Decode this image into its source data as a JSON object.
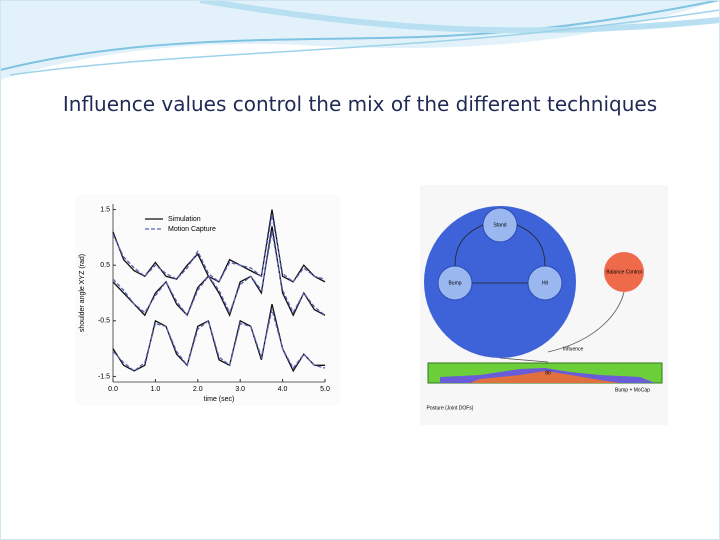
{
  "slide": {
    "title": "Influence values control the mix of the different techniques"
  },
  "chart_data": {
    "type": "line",
    "y_label": "shoulder angle XYZ (rad)",
    "x_label": "time (sec)",
    "x": [
      0,
      0.25,
      0.5,
      0.75,
      1,
      1.25,
      1.5,
      1.75,
      2,
      2.25,
      2.5,
      2.75,
      3,
      3.25,
      3.5,
      3.75,
      4,
      4.25,
      4.5,
      4.75,
      5
    ],
    "series": [
      {
        "name": "Simulation",
        "color": "#111111",
        "dashed": false,
        "curves": [
          [
            1.1,
            0.6,
            0.4,
            0.3,
            0.55,
            0.3,
            0.25,
            0.5,
            0.7,
            0.3,
            0.2,
            0.6,
            0.5,
            0.4,
            0.3,
            1.5,
            0.3,
            0.2,
            0.5,
            0.3,
            0.2
          ],
          [
            0.2,
            0.0,
            -0.2,
            -0.4,
            0.0,
            0.2,
            -0.2,
            -0.4,
            0.1,
            0.3,
            0.0,
            -0.4,
            0.2,
            0.3,
            0.0,
            1.2,
            0.0,
            -0.4,
            0.0,
            -0.3,
            -0.4
          ],
          [
            -1.0,
            -1.3,
            -1.4,
            -1.3,
            -0.5,
            -0.6,
            -1.1,
            -1.3,
            -0.6,
            -0.5,
            -1.2,
            -1.3,
            -0.5,
            -0.6,
            -1.2,
            -0.2,
            -1.0,
            -1.4,
            -1.1,
            -1.3,
            -1.3
          ]
        ]
      },
      {
        "name": "Motion Capture",
        "color": "#5a63b8",
        "dashed": true,
        "curves": [
          [
            1.05,
            0.65,
            0.45,
            0.3,
            0.5,
            0.35,
            0.25,
            0.45,
            0.75,
            0.35,
            0.2,
            0.55,
            0.5,
            0.45,
            0.3,
            1.4,
            0.35,
            0.2,
            0.45,
            0.3,
            0.25
          ],
          [
            0.25,
            0.05,
            -0.2,
            -0.35,
            -0.05,
            0.2,
            -0.15,
            -0.4,
            0.05,
            0.3,
            0.05,
            -0.35,
            0.15,
            0.3,
            0.05,
            1.1,
            0.05,
            -0.35,
            0.0,
            -0.25,
            -0.4
          ],
          [
            -1.05,
            -1.25,
            -1.4,
            -1.25,
            -0.55,
            -0.6,
            -1.05,
            -1.3,
            -0.65,
            -0.5,
            -1.15,
            -1.3,
            -0.55,
            -0.6,
            -1.15,
            -0.3,
            -1.0,
            -1.35,
            -1.1,
            -1.3,
            -1.35
          ]
        ]
      }
    ],
    "xlim": [
      0,
      5
    ],
    "xticks": [
      {
        "value": 0,
        "label": "0.0"
      },
      {
        "value": 1,
        "label": "1.0"
      },
      {
        "value": 2,
        "label": "2.0"
      },
      {
        "value": 3,
        "label": "3.0"
      },
      {
        "value": 4,
        "label": "4.0"
      },
      {
        "value": 5,
        "label": "5.0"
      }
    ],
    "ylim": [
      -1.6,
      1.6
    ],
    "yticks": [
      -1.5,
      -0.5,
      0.5,
      1.5
    ],
    "legend": "upper-right"
  },
  "diagram": {
    "nodes": [
      "Stand",
      "Bump",
      "Hit",
      "Balance Control"
    ],
    "influence": "Influence",
    "output": "Bump + MoCap",
    "posture": "Posture (Joint DOFs)",
    "strip_label": "80"
  }
}
